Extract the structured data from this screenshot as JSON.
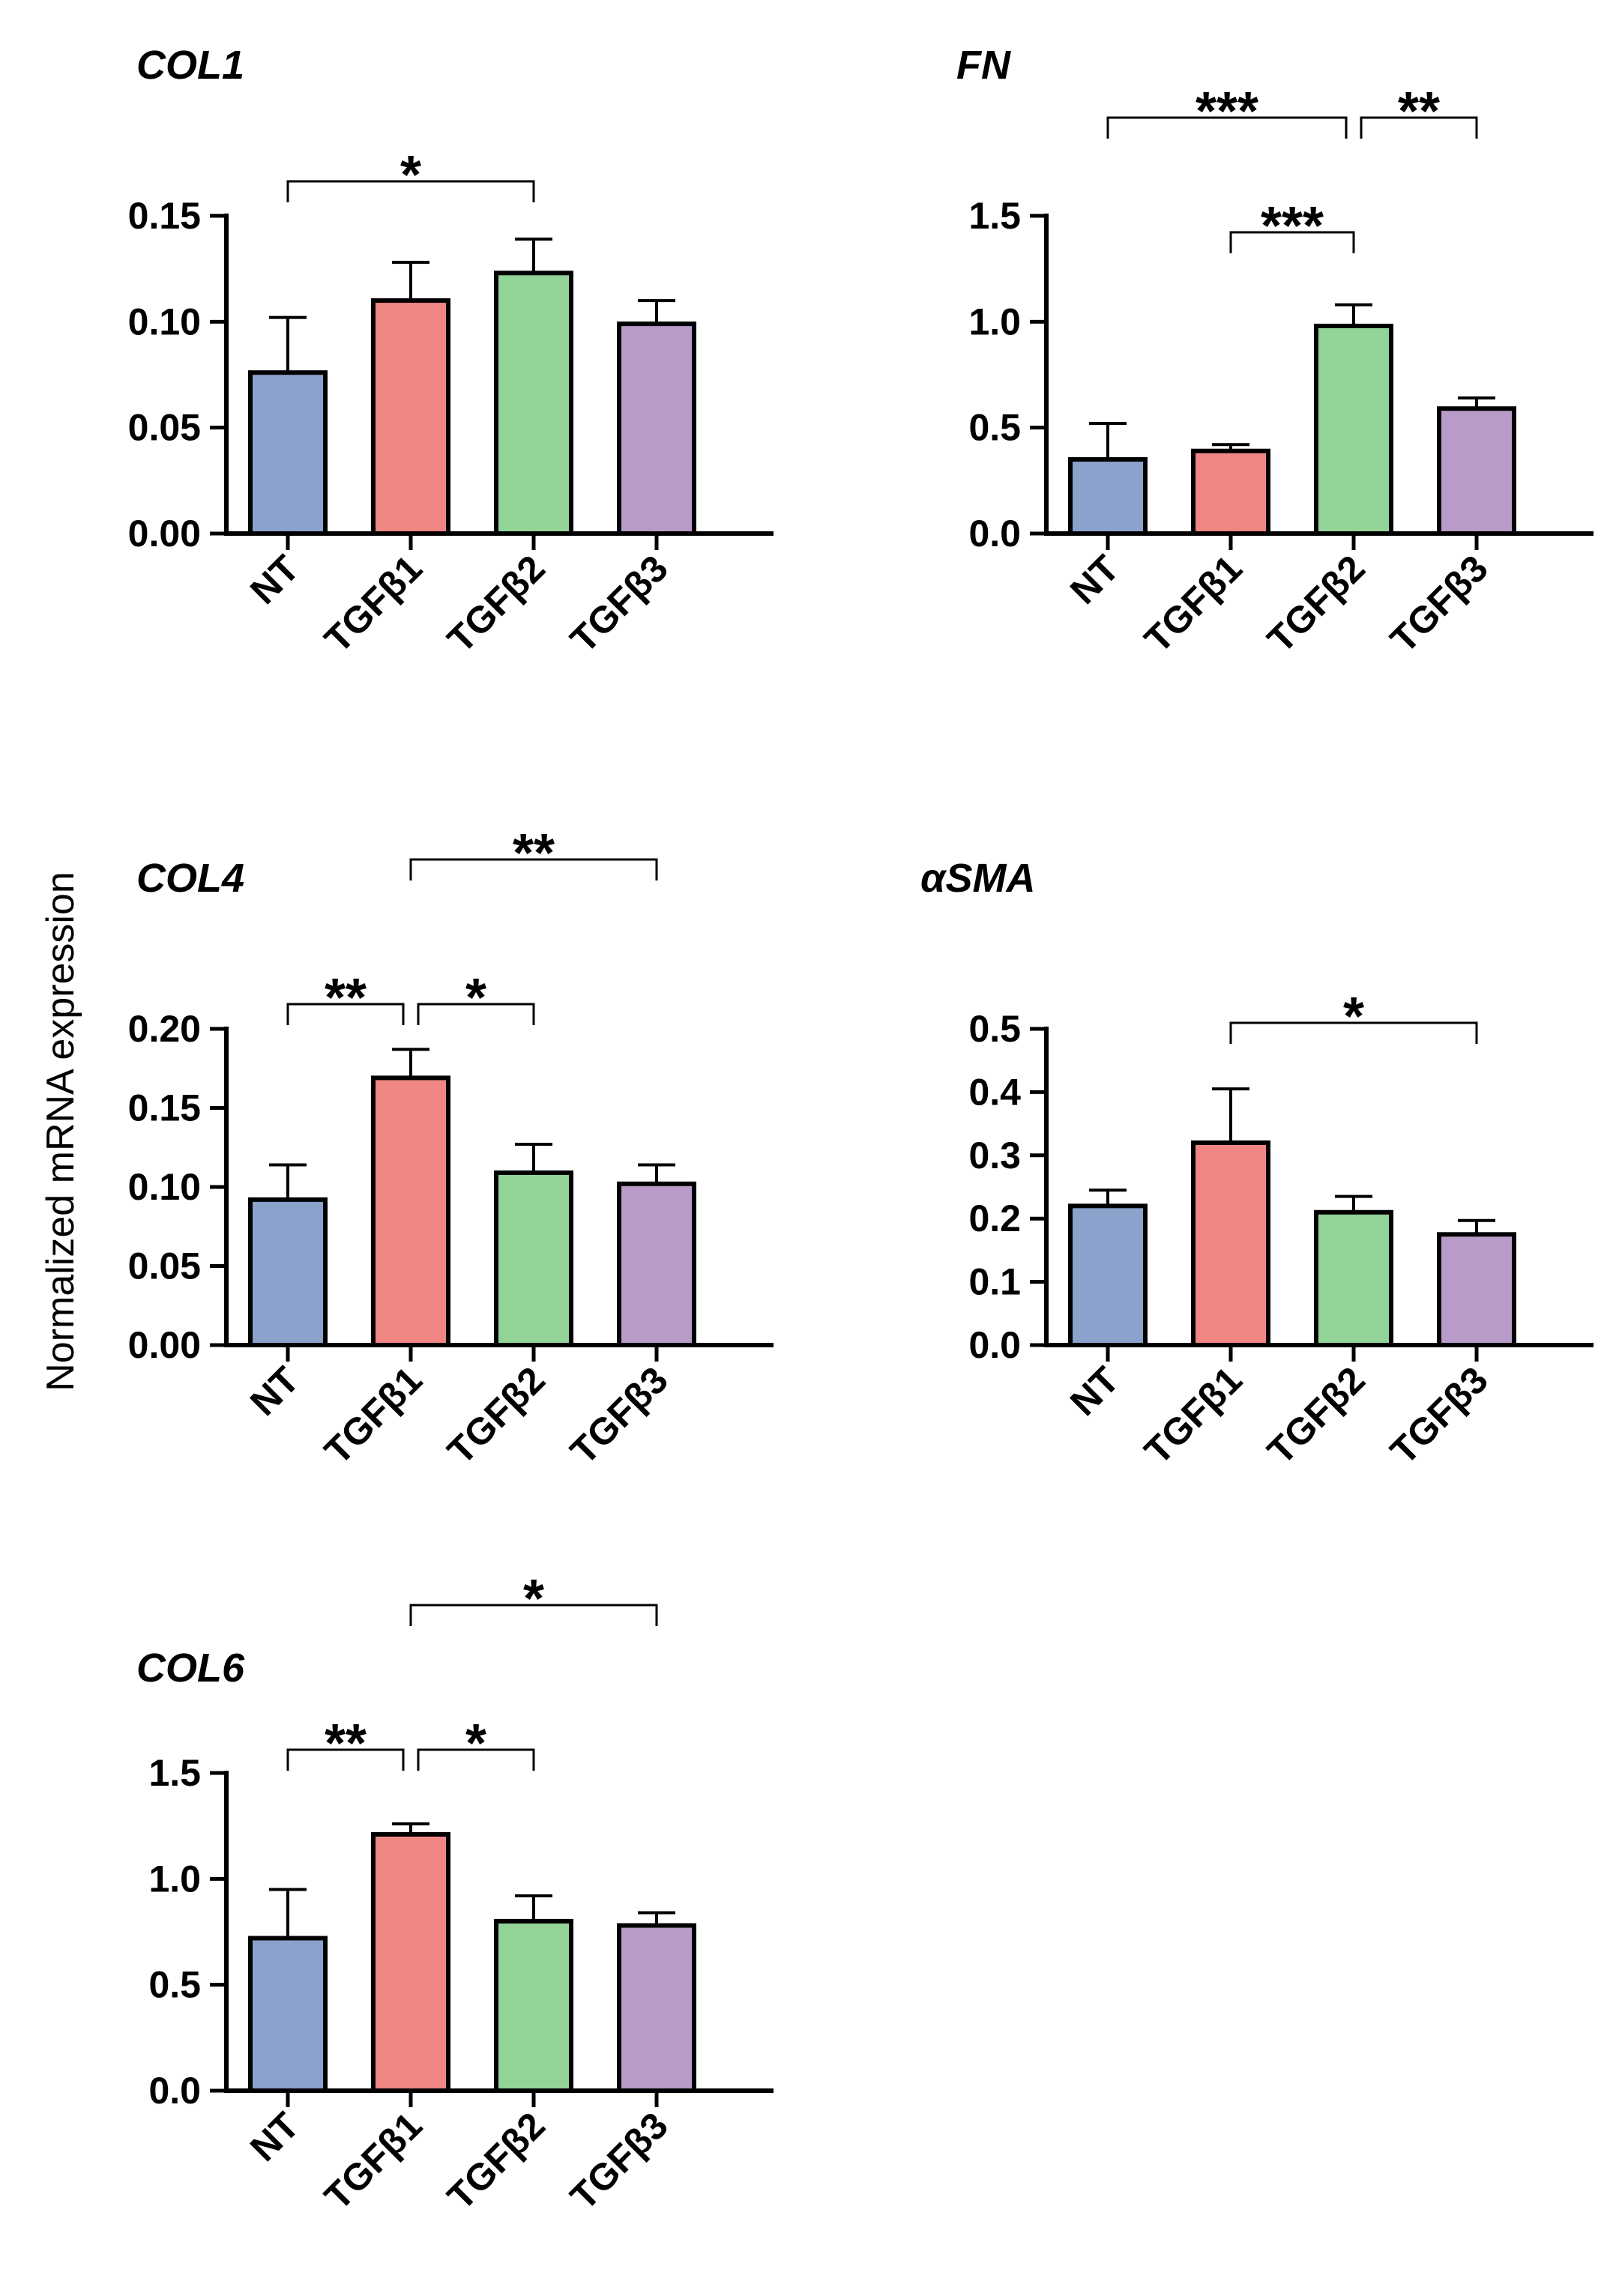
{
  "figure": {
    "ylabel": "Normalized mRNA expression",
    "colors": {
      "NT": "#8aa2cc",
      "TGFβ1": "#f08684",
      "TGFβ2": "#92d497",
      "TGFβ3": "#b89bc9",
      "axis": "#000000"
    }
  },
  "chart_data": [
    {
      "type": "bar",
      "title": "COL1",
      "categories": [
        "NT",
        "TGFβ1",
        "TGFβ2",
        "TGFβ3"
      ],
      "values": [
        0.076,
        0.11,
        0.123,
        0.099
      ],
      "errors": [
        0.026,
        0.018,
        0.016,
        0.011
      ],
      "ylim": [
        0,
        0.15
      ],
      "yticks": [
        0,
        0.05,
        0.1,
        0.15
      ],
      "ytick_labels": [
        "0.00",
        "0.05",
        "0.10",
        "0.15"
      ],
      "ylabel": "Normalized mRNA expression",
      "significance": [
        {
          "from": 0,
          "to": 2,
          "label": "*"
        }
      ]
    },
    {
      "type": "bar",
      "title": "FN",
      "categories": [
        "NT",
        "TGFβ1",
        "TGFβ2",
        "TGFβ3"
      ],
      "values": [
        0.35,
        0.39,
        0.98,
        0.59
      ],
      "errors": [
        0.17,
        0.03,
        0.1,
        0.05
      ],
      "ylim": [
        0,
        1.5
      ],
      "yticks": [
        0,
        0.5,
        1.0,
        1.5
      ],
      "ytick_labels": [
        "0.0",
        "0.5",
        "1.0",
        "1.5"
      ],
      "ylabel": "Normalized mRNA expression",
      "significance": [
        {
          "from": 1,
          "to": 2,
          "label": "***"
        },
        {
          "from": 0,
          "to": 2,
          "label": "***"
        },
        {
          "from": 2,
          "to": 3,
          "label": "**"
        }
      ]
    },
    {
      "type": "bar",
      "title": "COL4",
      "categories": [
        "NT",
        "TGFβ1",
        "TGFβ2",
        "TGFβ3"
      ],
      "values": [
        0.092,
        0.169,
        0.109,
        0.102
      ],
      "errors": [
        0.022,
        0.018,
        0.018,
        0.012
      ],
      "ylim": [
        0,
        0.2
      ],
      "yticks": [
        0,
        0.05,
        0.1,
        0.15,
        0.2
      ],
      "ytick_labels": [
        "0.00",
        "0.05",
        "0.10",
        "0.15",
        "0.20"
      ],
      "ylabel": "Normalized mRNA expression",
      "significance": [
        {
          "from": 0,
          "to": 1,
          "label": "**"
        },
        {
          "from": 1,
          "to": 2,
          "label": "*"
        },
        {
          "from": 1,
          "to": 3,
          "label": "**"
        }
      ]
    },
    {
      "type": "bar",
      "title": "αSMA",
      "categories": [
        "NT",
        "TGFβ1",
        "TGFβ2",
        "TGFβ3"
      ],
      "values": [
        0.22,
        0.32,
        0.21,
        0.175
      ],
      "errors": [
        0.025,
        0.085,
        0.025,
        0.022
      ],
      "ylim": [
        0,
        0.5
      ],
      "yticks": [
        0,
        0.1,
        0.2,
        0.3,
        0.4,
        0.5
      ],
      "ytick_labels": [
        "0.0",
        "0.1",
        "0.2",
        "0.3",
        "0.4",
        "0.5"
      ],
      "ylabel": "Normalized mRNA expression",
      "significance": [
        {
          "from": 1,
          "to": 3,
          "label": "*"
        }
      ]
    },
    {
      "type": "bar",
      "title": "COL6",
      "categories": [
        "NT",
        "TGFβ1",
        "TGFβ2",
        "TGFβ3"
      ],
      "values": [
        0.72,
        1.21,
        0.8,
        0.78
      ],
      "errors": [
        0.23,
        0.05,
        0.12,
        0.06
      ],
      "ylim": [
        0,
        1.5
      ],
      "yticks": [
        0,
        0.5,
        1.0,
        1.5
      ],
      "ytick_labels": [
        "0.0",
        "0.5",
        "1.0",
        "1.5"
      ],
      "ylabel": "Normalized mRNA expression",
      "significance": [
        {
          "from": 0,
          "to": 1,
          "label": "**"
        },
        {
          "from": 1,
          "to": 2,
          "label": "*"
        },
        {
          "from": 1,
          "to": 3,
          "label": "*"
        }
      ]
    }
  ]
}
